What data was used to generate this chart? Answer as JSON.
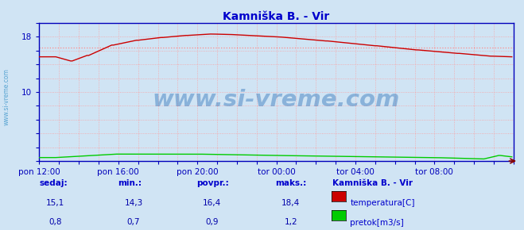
{
  "title": "Kamniška B. - Vir",
  "title_color": "#0000cc",
  "bg_color": "#d0e4f4",
  "plot_bg_color": "#d0e4f4",
  "grid_color": "#ff9999",
  "grid_style": ":",
  "xlim": [
    0,
    288
  ],
  "ylim": [
    0,
    20
  ],
  "ytick_positions": [
    10,
    18
  ],
  "ytick_labels": [
    "10",
    "18"
  ],
  "xtick_positions": [
    0,
    48,
    96,
    144,
    192,
    240
  ],
  "xtick_labels": [
    "pon 12:00",
    "pon 16:00",
    "pon 20:00",
    "tor 00:00",
    "tor 04:00",
    "tor 08:00"
  ],
  "watermark": "www.si-vreme.com",
  "watermark_color": "#3377bb",
  "watermark_alpha": 0.45,
  "temp_color": "#cc0000",
  "flow_color": "#00cc00",
  "avg_line_color": "#ff8888",
  "avg_line_style": ":",
  "avg_temp": 16.4,
  "sedaj_temp": 15.1,
  "min_temp": 14.3,
  "povpr_temp": 16.4,
  "maks_temp": 18.4,
  "sedaj_flow": 0.8,
  "min_flow": 0.7,
  "povpr_flow": 0.9,
  "maks_flow": 1.2,
  "legend_title": "Kamniška B. - Vir",
  "legend_temp_label": "temperatura[C]",
  "legend_flow_label": "pretok[m3/s]",
  "info_labels": [
    "sedaj:",
    "min.:",
    "povpr.:",
    "maks.:"
  ],
  "axis_color": "#0000bb",
  "tick_color": "#0000bb",
  "label_color": "#0000cc",
  "sidebar_text": "www.si-vreme.com",
  "sidebar_color": "#4499cc",
  "minor_grid_every": 2,
  "arrow_color": "#880000"
}
